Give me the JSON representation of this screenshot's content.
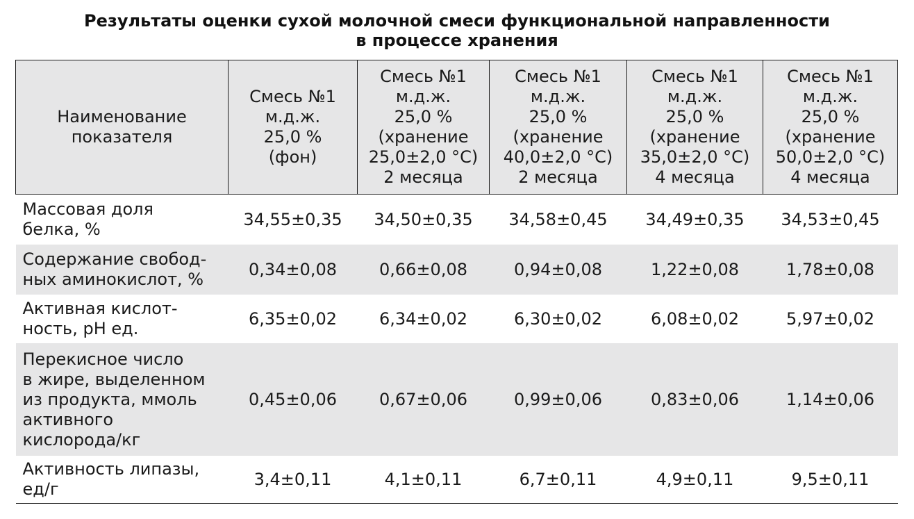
{
  "title": {
    "line1": "Результаты оценки сухой молочной смеси функциональной направленности",
    "line2": "в процессе хранения"
  },
  "table": {
    "headers": [
      {
        "lines": [
          "Наименование",
          "показателя"
        ]
      },
      {
        "lines": [
          "Смесь №1",
          "м.д.ж.",
          "25,0 %",
          "(фон)"
        ]
      },
      {
        "lines": [
          "Смесь №1",
          "м.д.ж.",
          "25,0 %",
          "(хранение",
          "25,0±2,0 °C)",
          "2 месяца"
        ]
      },
      {
        "lines": [
          "Смесь №1",
          "м.д.ж.",
          "25,0 %",
          "(хранение",
          "40,0±2,0 °C)",
          "2 месяца"
        ]
      },
      {
        "lines": [
          "Смесь №1",
          "м.д.ж.",
          "25,0 %",
          "(хранение",
          "35,0±2,0 °C)",
          "4 месяца"
        ]
      },
      {
        "lines": [
          "Смесь №1",
          "м.д.ж.",
          "25,0 %",
          "(хранение",
          "50,0±2,0 °C)",
          "4 месяца"
        ]
      }
    ],
    "rows": [
      {
        "name": [
          "Массовая доля",
          "белка, %"
        ],
        "values": [
          "34,55±0,35",
          "34,50±0,35",
          "34,58±0,45",
          "34,49±0,35",
          "34,53±0,45"
        ]
      },
      {
        "name": [
          "Содержание свобод-",
          "ных аминокислот, %"
        ],
        "values": [
          "0,34±0,08",
          "0,66±0,08",
          "0,94±0,08",
          "1,22±0,08",
          "1,78±0,08"
        ]
      },
      {
        "name": [
          "Активная кислот-",
          "ность, pH ед."
        ],
        "values": [
          "6,35±0,02",
          "6,34±0,02",
          "6,30±0,02",
          "6,08±0,02",
          "5,97±0,02"
        ]
      },
      {
        "name": [
          "Перекисное число",
          "в жире, выделенном",
          "из продукта, ммоль",
          "активного",
          "кислорода/кг"
        ],
        "values": [
          "0,45±0,06",
          "0,67±0,06",
          "0,99±0,06",
          "0,83±0,06",
          "1,14±0,06"
        ]
      },
      {
        "name": [
          "Активность липазы,",
          "ед/г"
        ],
        "values": [
          "3,4±0,11",
          "4,1±0,11",
          "6,7±0,11",
          "4,9±0,11",
          "9,5±0,11"
        ]
      }
    ]
  }
}
